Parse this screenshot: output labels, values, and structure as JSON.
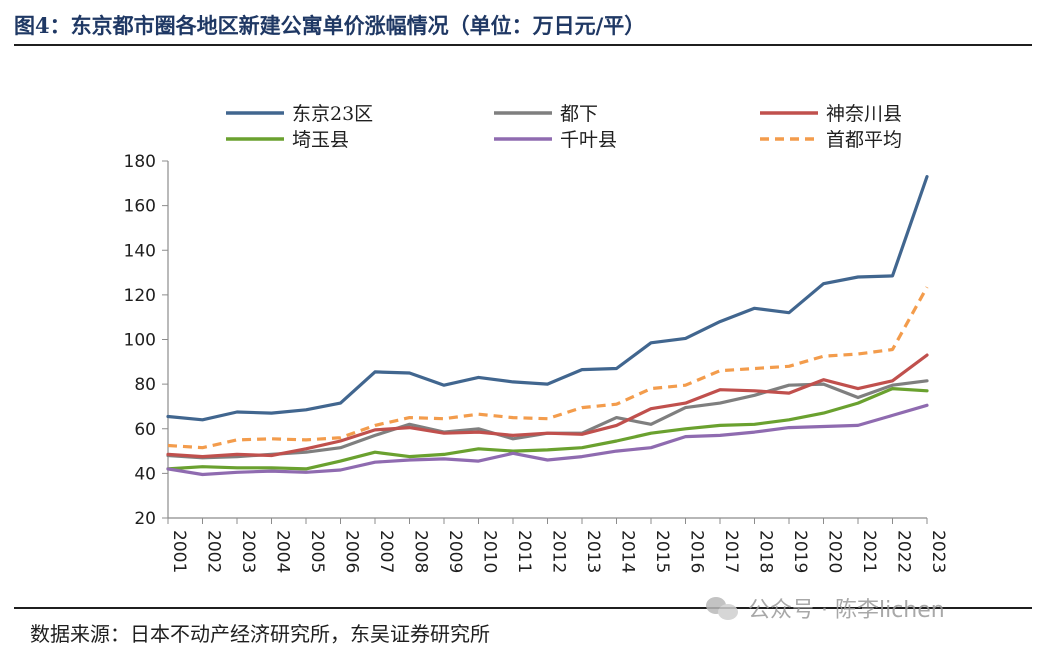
{
  "header": {
    "title": "图4：东京都市圈各地区新建公寓单价涨幅情况（单位：万日元/平）"
  },
  "footer": {
    "source": "数据来源：日本不动产经济研究所，东吴证券研究所",
    "watermark": "公众号 · 陈李lichen"
  },
  "chart_data": {
    "type": "line",
    "x": [
      "2001",
      "2002",
      "2003",
      "2004",
      "2005",
      "2006",
      "2007",
      "2008",
      "2009",
      "2010",
      "2011",
      "2012",
      "2013",
      "2014",
      "2015",
      "2016",
      "2017",
      "2018",
      "2019",
      "2020",
      "2021",
      "2022",
      "2023"
    ],
    "ylim": [
      20,
      180
    ],
    "yticks": [
      20,
      40,
      60,
      80,
      100,
      120,
      140,
      160,
      180
    ],
    "grid": false,
    "legend_position": "top",
    "series": [
      {
        "name": "东京23区",
        "color": "#41668f",
        "dash": false,
        "values": [
          65.5,
          64,
          67.5,
          67,
          68.5,
          71.5,
          85.5,
          85,
          79.5,
          83,
          81,
          80,
          86.5,
          87,
          98.5,
          100.5,
          108,
          114,
          112,
          125,
          128,
          128.5,
          173
        ]
      },
      {
        "name": "都下",
        "color": "#7f7f7f",
        "dash": false,
        "values": [
          48,
          47,
          47.5,
          48.5,
          49.5,
          51.5,
          57,
          62,
          58.5,
          60,
          55.5,
          58,
          58,
          65,
          62,
          69.5,
          71.5,
          75,
          79.5,
          80,
          74,
          79.5,
          81.5
        ]
      },
      {
        "name": "神奈川县",
        "color": "#c0504d",
        "dash": false,
        "values": [
          48.5,
          47.5,
          48.5,
          48,
          51,
          54.5,
          59.5,
          60.5,
          58,
          58.5,
          57,
          58,
          57.5,
          61.5,
          69,
          71.5,
          77.5,
          77,
          76,
          82,
          78,
          81.5,
          93
        ]
      },
      {
        "name": "埼玉县",
        "color": "#6aa12f",
        "dash": false,
        "values": [
          42,
          43,
          42.5,
          42.5,
          42,
          45.5,
          49.5,
          47.5,
          48.5,
          51,
          50,
          50.5,
          51.5,
          54.5,
          58,
          60,
          61.5,
          62,
          64,
          67,
          71.5,
          78,
          77
        ]
      },
      {
        "name": "千叶县",
        "color": "#8f6bb0",
        "dash": false,
        "values": [
          42,
          39.5,
          40.5,
          41,
          40.5,
          41.5,
          45,
          46,
          46.5,
          45.5,
          49,
          46,
          47.5,
          50,
          51.5,
          56.5,
          57,
          58.5,
          60.5,
          61,
          61.5,
          66,
          70.5
        ]
      },
      {
        "name": "首都平均",
        "color": "#f39c4c",
        "dash": true,
        "values": [
          52.5,
          51.5,
          55,
          55.5,
          55,
          56,
          61.5,
          65,
          64.5,
          66.5,
          65,
          64.5,
          69.5,
          71,
          78,
          79.5,
          86,
          87,
          88,
          92.5,
          93.5,
          95.5,
          123.5
        ]
      }
    ]
  }
}
